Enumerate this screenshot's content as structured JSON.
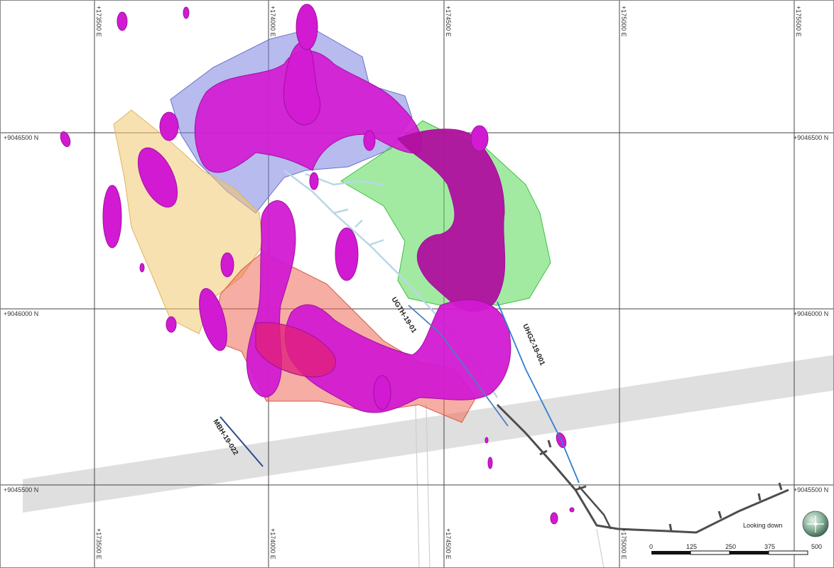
{
  "map": {
    "northing_labels": [
      "+9046500 N",
      "+9046000 N",
      "+9045500 N"
    ],
    "easting_labels": [
      "+173500 E",
      "+174000 E",
      "+174500 E",
      "+175000 E",
      "+175500 E"
    ],
    "drillholes": [
      {
        "name": "UGTH-19-01",
        "color": "#4a7fc0"
      },
      {
        "name": "UHGZ-19-001",
        "color": "#2f7fd0"
      },
      {
        "name": "MBH-19-022",
        "color": "#2a4a8a"
      }
    ],
    "view_label": "Looking down",
    "scale_bar": {
      "ticks": [
        "0",
        "125",
        "250",
        "375",
        "500"
      ]
    },
    "colors": {
      "ore_body": "#d21ad2",
      "zone_blue": "#7b83e0",
      "zone_green": "#55d855",
      "zone_yellow": "#f2c870",
      "zone_red": "#ef6a58",
      "road_band": "#d9d9d9",
      "underground_workings": "#4d4d4d"
    }
  }
}
